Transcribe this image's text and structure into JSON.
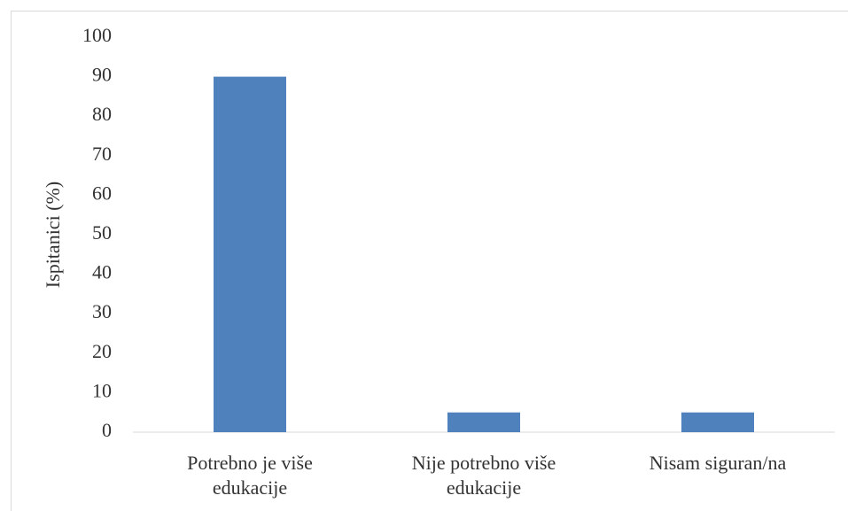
{
  "chart_data": {
    "type": "bar",
    "y_label": "Ispitanici (%)",
    "categories": [
      "Potrebno je više edukacije",
      "Nije potrebno više edukacije",
      "Nisam siguran/na"
    ],
    "values": [
      90,
      5,
      5
    ],
    "color": "#4f81bd",
    "ylim": [
      0,
      100
    ],
    "yticks": [
      0,
      10,
      20,
      30,
      40,
      50,
      60,
      70,
      80,
      90,
      100
    ],
    "grid": false
  }
}
